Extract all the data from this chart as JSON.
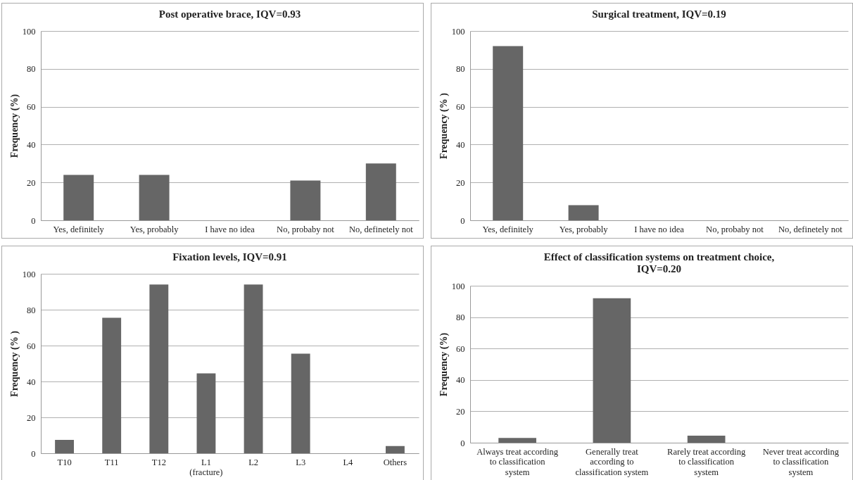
{
  "chart_data": [
    {
      "type": "bar",
      "title": "Post operative brace, IQV=0.93",
      "ylabel": "Frequency (%)",
      "categories": [
        "Yes, definitely",
        "Yes, probably",
        "I have no idea",
        "No, probaby not",
        "No, definetely not"
      ],
      "values": [
        24,
        24,
        0,
        21,
        30
      ],
      "color": "#666666",
      "ylim": [
        0,
        100
      ],
      "yticks": [
        0,
        20,
        40,
        60,
        80,
        100
      ],
      "grid": "y"
    },
    {
      "type": "bar",
      "title": "Surgical treatment, IQV=0.19",
      "ylabel": "Frequency (% )",
      "categories": [
        "Yes, definitely",
        "Yes, probably",
        "I have no idea",
        "No, probaby not",
        "No, definetely not"
      ],
      "values": [
        92,
        8,
        0,
        0,
        0
      ],
      "color": "#666666",
      "ylim": [
        0,
        100
      ],
      "yticks": [
        0,
        20,
        40,
        60,
        80,
        100
      ],
      "grid": "y"
    },
    {
      "type": "bar",
      "title": "Fixation levels, IQV=0.91",
      "ylabel": "Frequency (% )",
      "categories": [
        "T10",
        "T11",
        "T12",
        "L1 (fracture)",
        "L2",
        "L3",
        "L4",
        "Others"
      ],
      "values": [
        7.5,
        75.5,
        94,
        44.5,
        94,
        55.5,
        0,
        4
      ],
      "color": "#666666",
      "ylim": [
        0,
        100
      ],
      "yticks": [
        0,
        20,
        40,
        60,
        80,
        100
      ],
      "grid": "y"
    },
    {
      "type": "bar",
      "title": "Effect of classification systems on treatment choice, IQV=0.20",
      "ylabel": "Frequency (%)",
      "categories": [
        "Always treat according to classification system",
        "Generally treat according to classification system",
        "Rarely treat according to classification system",
        "Never treat according to classification system"
      ],
      "values": [
        3,
        92,
        4.5,
        0
      ],
      "color": "#666666",
      "ylim": [
        0,
        100
      ],
      "yticks": [
        0,
        20,
        40,
        60,
        80,
        100
      ],
      "grid": "y"
    }
  ]
}
